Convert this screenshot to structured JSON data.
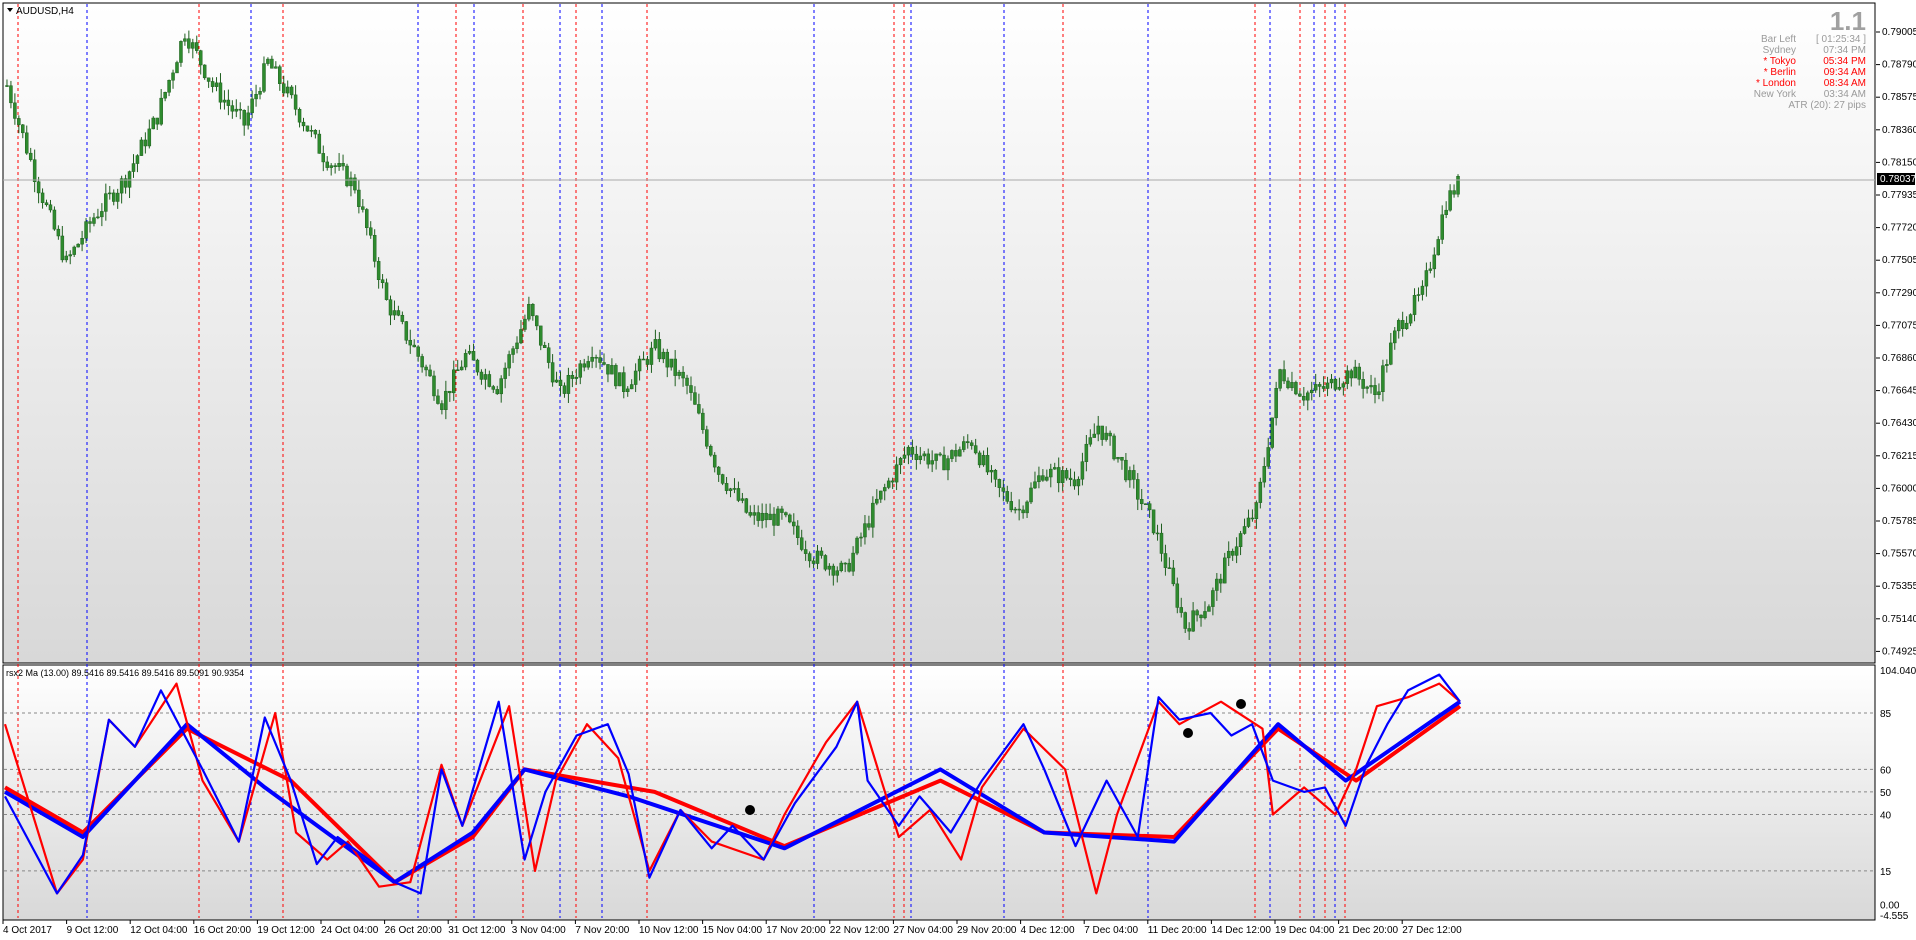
{
  "chart_title": "AUDUSD,H4",
  "indicator_label": "rsx2 Ma (13.00) 89.5416 89.5416 89.5416 89.5091 90.9354",
  "session_panel": {
    "version": "1.1",
    "rows": [
      {
        "name": "Bar Left",
        "value": "[ 01:25:34 ]",
        "color": "#9a9a9a"
      },
      {
        "name": "Sydney",
        "value": "07:34 PM",
        "color": "#9a9a9a"
      },
      {
        "name": "* Tokyo",
        "value": "05:34 PM",
        "color": "#ff0000"
      },
      {
        "name": "* Berlin",
        "value": "09:34 AM",
        "color": "#ff0000"
      },
      {
        "name": "* London",
        "value": "08:34 AM",
        "color": "#ff0000"
      },
      {
        "name": "New York",
        "value": "03:34 AM",
        "color": "#9a9a9a"
      }
    ],
    "atr": "ATR (20): 27 pips"
  },
  "price_axis": [
    "0.79005",
    "0.78790",
    "0.78575",
    "0.78360",
    "0.78150",
    "0.77935",
    "0.77720",
    "0.77505",
    "0.77290",
    "0.77075",
    "0.76860",
    "0.76645",
    "0.76430",
    "0.76215",
    "0.76000",
    "0.75785",
    "0.75570",
    "0.75355",
    "0.75140",
    "0.74925"
  ],
  "current_price": "0.78037",
  "indicator_axis": [
    "104.0408",
    "85",
    "60",
    "50",
    "40",
    "15",
    "0.00",
    "-4.555"
  ],
  "indicator_levels": [
    85,
    60,
    50,
    40,
    15
  ],
  "time_axis": [
    "4 Oct 2017",
    "9 Oct 12:00",
    "12 Oct 04:00",
    "16 Oct 20:00",
    "19 Oct 12:00",
    "24 Oct 04:00",
    "26 Oct 20:00",
    "31 Oct 12:00",
    "3 Nov 04:00",
    "7 Nov 20:00",
    "10 Nov 12:00",
    "15 Nov 04:00",
    "17 Nov 20:00",
    "22 Nov 12:00",
    "27 Nov 04:00",
    "29 Nov 20:00",
    "4 Dec 12:00",
    "7 Dec 04:00",
    "11 Dec 20:00",
    "14 Dec 12:00",
    "19 Dec 04:00",
    "21 Dec 20:00",
    "27 Dec 12:00"
  ],
  "colors": {
    "bull": "#2e8b2e",
    "bear": "#2e8b2e",
    "up_line": "#0000ff",
    "down_line": "#ff0000",
    "session_red": "#ff0000",
    "session_blue": "#0000ff"
  },
  "chart_data": {
    "type": "candlestick",
    "symbol": "AUDUSD",
    "timeframe": "H4",
    "ylim": [
      0.74925,
      0.79005
    ],
    "close_path": [
      [
        0,
        0.786
      ],
      [
        8,
        0.7795
      ],
      [
        15,
        0.7745
      ],
      [
        22,
        0.7775
      ],
      [
        30,
        0.78
      ],
      [
        38,
        0.784
      ],
      [
        45,
        0.7895
      ],
      [
        52,
        0.786
      ],
      [
        60,
        0.7835
      ],
      [
        66,
        0.7875
      ],
      [
        72,
        0.785
      ],
      [
        80,
        0.7815
      ],
      [
        88,
        0.7795
      ],
      [
        96,
        0.772
      ],
      [
        104,
        0.7685
      ],
      [
        110,
        0.7655
      ],
      [
        116,
        0.7685
      ],
      [
        124,
        0.7665
      ],
      [
        132,
        0.7715
      ],
      [
        140,
        0.766
      ],
      [
        148,
        0.769
      ],
      [
        156,
        0.7665
      ],
      [
        164,
        0.769
      ],
      [
        172,
        0.7665
      ],
      [
        180,
        0.761
      ],
      [
        188,
        0.758
      ],
      [
        196,
        0.758
      ],
      [
        204,
        0.7555
      ],
      [
        212,
        0.7545
      ],
      [
        220,
        0.759
      ],
      [
        228,
        0.7625
      ],
      [
        236,
        0.7615
      ],
      [
        244,
        0.763
      ],
      [
        250,
        0.76
      ],
      [
        256,
        0.7585
      ],
      [
        262,
        0.761
      ],
      [
        270,
        0.7605
      ],
      [
        276,
        0.764
      ],
      [
        282,
        0.7615
      ],
      [
        290,
        0.7575
      ],
      [
        298,
        0.751
      ],
      [
        304,
        0.7525
      ],
      [
        310,
        0.756
      ],
      [
        316,
        0.7585
      ],
      [
        322,
        0.7675
      ],
      [
        328,
        0.766
      ],
      [
        334,
        0.7665
      ],
      [
        340,
        0.7675
      ],
      [
        346,
        0.766
      ],
      [
        352,
        0.7705
      ],
      [
        358,
        0.7725
      ],
      [
        364,
        0.7785
      ],
      [
        368,
        0.78
      ]
    ],
    "candles_count": 368,
    "indicator": {
      "name": "rsx2 Ma (13.00)",
      "ylim": [
        -4.555,
        104.0408
      ],
      "levels": [
        85,
        60,
        50,
        40,
        15
      ],
      "series": [
        {
          "name": "rsx (blue)",
          "points": [
            [
              0,
              48
            ],
            [
              10,
              5
            ],
            [
              15,
              22
            ],
            [
              20,
              82
            ],
            [
              25,
              70
            ],
            [
              30,
              95
            ],
            [
              38,
              60
            ],
            [
              45,
              28
            ],
            [
              50,
              83
            ],
            [
              55,
              55
            ],
            [
              60,
              18
            ],
            [
              64,
              30
            ],
            [
              70,
              20
            ],
            [
              75,
              10
            ],
            [
              80,
              5
            ],
            [
              84,
              60
            ],
            [
              88,
              35
            ],
            [
              95,
              90
            ],
            [
              100,
              20
            ],
            [
              104,
              50
            ],
            [
              110,
              75
            ],
            [
              116,
              80
            ],
            [
              120,
              58
            ],
            [
              124,
              12
            ],
            [
              130,
              42
            ],
            [
              136,
              25
            ],
            [
              140,
              35
            ],
            [
              146,
              20
            ],
            [
              152,
              45
            ],
            [
              160,
              70
            ],
            [
              164,
              90
            ],
            [
              166,
              55
            ],
            [
              172,
              35
            ],
            [
              176,
              48
            ],
            [
              182,
              32
            ],
            [
              188,
              55
            ],
            [
              196,
              80
            ],
            [
              200,
              60
            ],
            [
              206,
              26
            ],
            [
              212,
              55
            ],
            [
              218,
              30
            ],
            [
              222,
              92
            ],
            [
              226,
              82
            ],
            [
              232,
              85
            ],
            [
              236,
              75
            ],
            [
              240,
              80
            ],
            [
              244,
              55
            ],
            [
              250,
              50
            ],
            [
              254,
              52
            ],
            [
              258,
              35
            ],
            [
              262,
              62
            ],
            [
              266,
              80
            ],
            [
              270,
              95
            ],
            [
              276,
              102
            ],
            [
              280,
              90
            ]
          ]
        },
        {
          "name": "rsx (red)",
          "points": [
            [
              0,
              80
            ],
            [
              10,
              5
            ],
            [
              15,
              20
            ],
            [
              20,
              82
            ],
            [
              25,
              70
            ],
            [
              33,
              98
            ],
            [
              38,
              55
            ],
            [
              45,
              28
            ],
            [
              52,
              85
            ],
            [
              56,
              32
            ],
            [
              62,
              20
            ],
            [
              66,
              28
            ],
            [
              72,
              8
            ],
            [
              78,
              10
            ],
            [
              84,
              62
            ],
            [
              88,
              35
            ],
            [
              97,
              88
            ],
            [
              102,
              15
            ],
            [
              106,
              55
            ],
            [
              112,
              80
            ],
            [
              118,
              65
            ],
            [
              124,
              15
            ],
            [
              130,
              42
            ],
            [
              136,
              28
            ],
            [
              146,
              20
            ],
            [
              150,
              40
            ],
            [
              158,
              72
            ],
            [
              164,
              90
            ],
            [
              168,
              60
            ],
            [
              172,
              30
            ],
            [
              178,
              42
            ],
            [
              184,
              20
            ],
            [
              188,
              52
            ],
            [
              196,
              78
            ],
            [
              204,
              60
            ],
            [
              210,
              5
            ],
            [
              214,
              40
            ],
            [
              222,
              90
            ],
            [
              226,
              80
            ],
            [
              234,
              90
            ],
            [
              242,
              78
            ],
            [
              244,
              40
            ],
            [
              250,
              52
            ],
            [
              256,
              40
            ],
            [
              260,
              60
            ],
            [
              264,
              88
            ],
            [
              270,
              92
            ],
            [
              276,
              98
            ],
            [
              280,
              90
            ]
          ]
        },
        {
          "name": "ma (blue)",
          "points": [
            [
              0,
              50
            ],
            [
              15,
              30
            ],
            [
              35,
              80
            ],
            [
              50,
              52
            ],
            [
              75,
              10
            ],
            [
              90,
              32
            ],
            [
              100,
              60
            ],
            [
              120,
              48
            ],
            [
              150,
              25
            ],
            [
              180,
              60
            ],
            [
              200,
              32
            ],
            [
              225,
              28
            ],
            [
              245,
              80
            ],
            [
              258,
              55
            ],
            [
              280,
              90
            ]
          ]
        },
        {
          "name": "ma (red)",
          "points": [
            [
              0,
              52
            ],
            [
              15,
              32
            ],
            [
              35,
              78
            ],
            [
              55,
              55
            ],
            [
              75,
              10
            ],
            [
              90,
              30
            ],
            [
              100,
              60
            ],
            [
              125,
              50
            ],
            [
              150,
              26
            ],
            [
              180,
              55
            ],
            [
              200,
              32
            ],
            [
              225,
              30
            ],
            [
              245,
              78
            ],
            [
              260,
              55
            ],
            [
              280,
              88
            ]
          ]
        }
      ]
    }
  }
}
